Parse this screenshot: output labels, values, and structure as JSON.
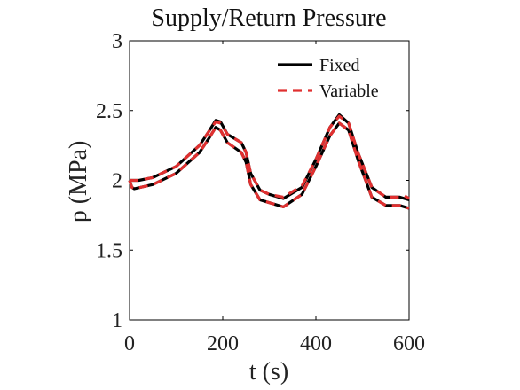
{
  "chart_data": {
    "type": "line",
    "title": "Supply/Return Pressure",
    "xlabel": "t (s)",
    "ylabel": "p (MPa)",
    "xlim": [
      0,
      600
    ],
    "ylim": [
      1,
      3
    ],
    "xticks": [
      0,
      200,
      400,
      600
    ],
    "yticks": [
      1,
      1.5,
      2,
      2.5,
      3
    ],
    "ytick_labels": [
      "1",
      "1.5",
      "2",
      "2.5",
      "3"
    ],
    "xtick_labels": [
      "0",
      "200",
      "400",
      "600"
    ],
    "grid": false,
    "legend_position": "top-right",
    "series": [
      {
        "name": "Fixed",
        "color": "#000000",
        "style": "solid",
        "x": [
          0,
          20,
          50,
          100,
          150,
          170,
          185,
          195,
          210,
          240,
          250,
          260,
          280,
          300,
          330,
          370,
          400,
          430,
          450,
          470,
          490,
          520,
          550,
          580,
          590,
          600
        ],
        "y": [
          2.0,
          2.0,
          2.02,
          2.1,
          2.25,
          2.35,
          2.43,
          2.42,
          2.33,
          2.27,
          2.2,
          2.05,
          1.93,
          1.9,
          1.87,
          1.95,
          2.15,
          2.38,
          2.47,
          2.41,
          2.2,
          1.95,
          1.88,
          1.88,
          1.87,
          1.86
        ]
      },
      {
        "name": "Fixed",
        "color": "#000000",
        "style": "solid",
        "x": [
          0,
          5,
          10,
          50,
          100,
          150,
          170,
          185,
          195,
          210,
          240,
          250,
          260,
          280,
          300,
          330,
          370,
          400,
          430,
          450,
          470,
          490,
          520,
          550,
          580,
          600
        ],
        "y": [
          2.0,
          1.95,
          1.94,
          1.97,
          2.05,
          2.2,
          2.3,
          2.38,
          2.36,
          2.27,
          2.2,
          2.13,
          1.97,
          1.86,
          1.84,
          1.81,
          1.9,
          2.1,
          2.32,
          2.41,
          2.36,
          2.15,
          1.88,
          1.82,
          1.82,
          1.8
        ]
      },
      {
        "name": "Variable",
        "color": "#e03030",
        "style": "dashed",
        "x": [
          0,
          20,
          50,
          100,
          150,
          170,
          185,
          195,
          210,
          240,
          250,
          260,
          280,
          300,
          330,
          370,
          400,
          430,
          450,
          470,
          490,
          520,
          550,
          580,
          590,
          600
        ],
        "y": [
          2.0,
          2.0,
          2.02,
          2.1,
          2.25,
          2.35,
          2.42,
          2.41,
          2.33,
          2.27,
          2.2,
          2.05,
          1.93,
          1.9,
          1.88,
          1.96,
          2.15,
          2.38,
          2.46,
          2.41,
          2.2,
          1.95,
          1.88,
          1.88,
          1.89,
          1.87
        ]
      },
      {
        "name": "Variable",
        "color": "#e03030",
        "style": "dashed",
        "x": [
          0,
          5,
          10,
          50,
          100,
          150,
          170,
          185,
          195,
          210,
          240,
          250,
          260,
          280,
          300,
          330,
          370,
          400,
          430,
          450,
          470,
          490,
          520,
          550,
          580,
          600
        ],
        "y": [
          2.0,
          1.95,
          1.94,
          1.97,
          2.05,
          2.2,
          2.3,
          2.38,
          2.36,
          2.27,
          2.2,
          2.13,
          1.97,
          1.86,
          1.84,
          1.81,
          1.9,
          2.1,
          2.32,
          2.41,
          2.36,
          2.15,
          1.88,
          1.82,
          1.82,
          1.8
        ]
      }
    ],
    "legend": [
      {
        "label": "Fixed",
        "color": "#000000",
        "style": "solid"
      },
      {
        "label": "Variable",
        "color": "#e03030",
        "style": "dashed"
      }
    ]
  }
}
